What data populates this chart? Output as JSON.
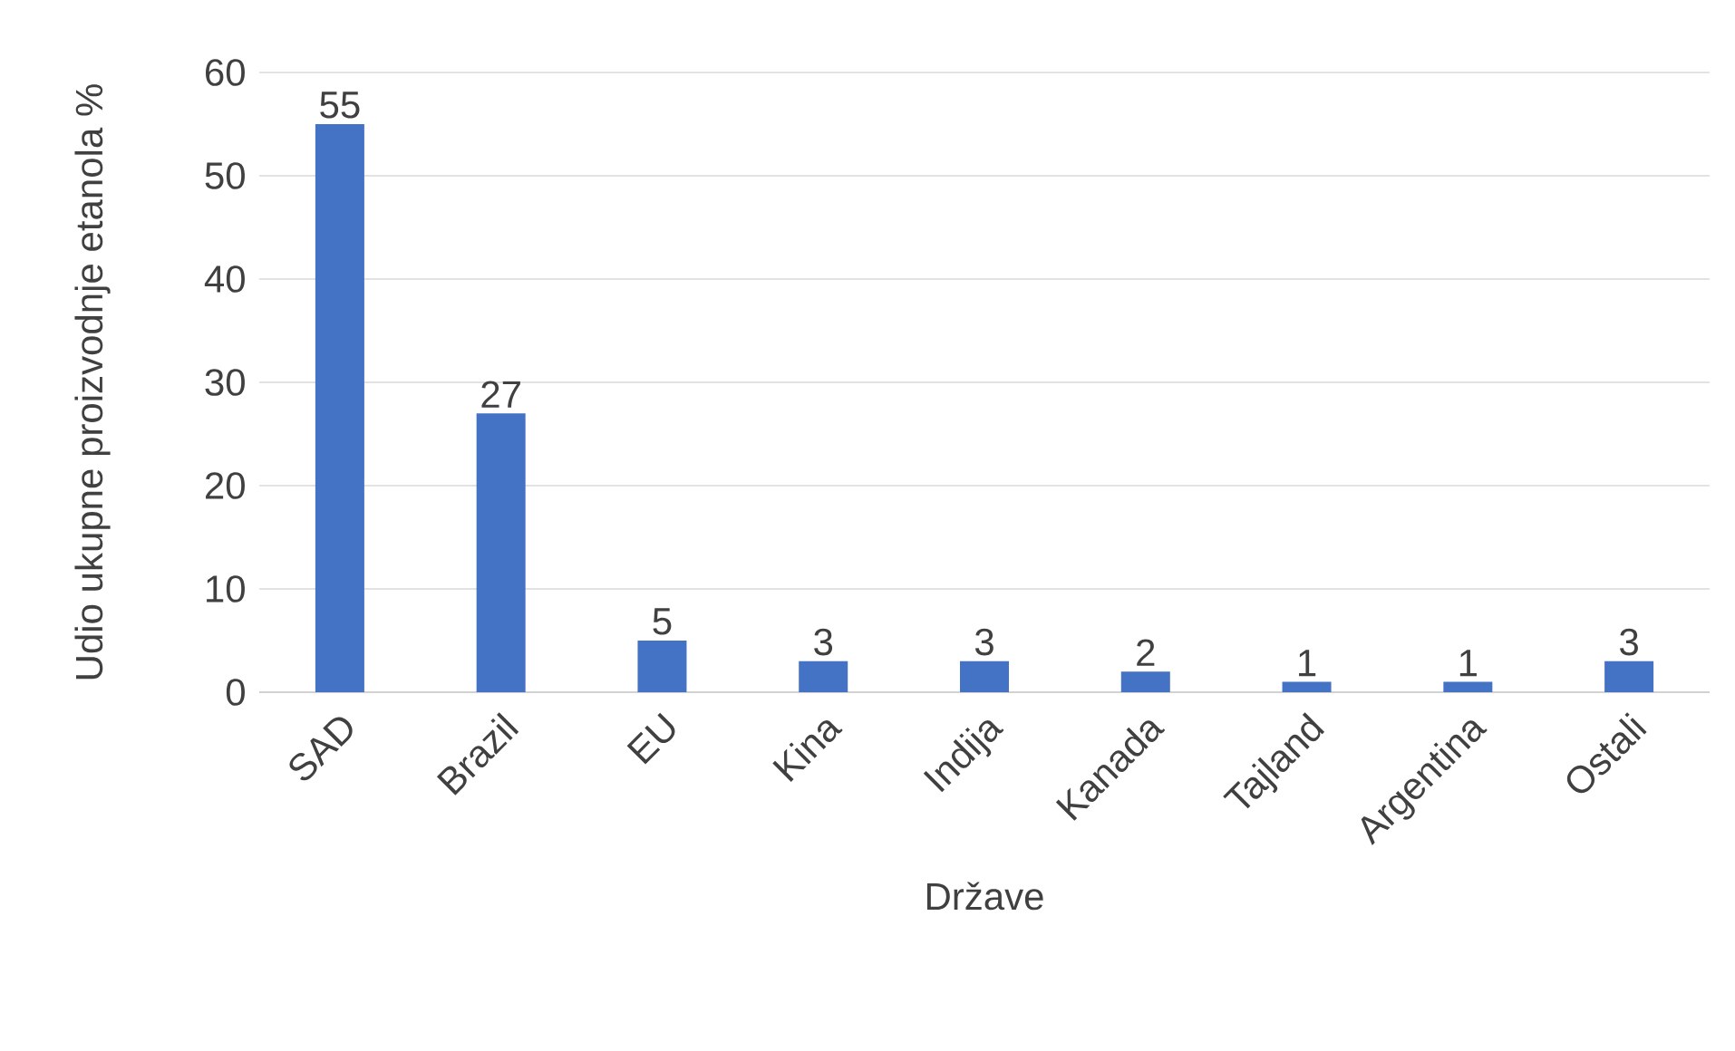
{
  "chart_data": {
    "type": "bar",
    "xlabel": "Države",
    "ylabel": "Udio ukupne proizvodnje etanola %",
    "categories": [
      "SAD",
      "Brazil",
      "EU",
      "Kina",
      "Indija",
      "Kanada",
      "Tajland",
      "Argentina",
      "Ostali"
    ],
    "values": [
      55,
      27,
      5,
      3,
      3,
      2,
      1,
      1,
      3
    ],
    "color": "#4472c4",
    "ylim": [
      0,
      60
    ],
    "yticks": [
      0,
      10,
      20,
      30,
      40,
      50,
      60
    ],
    "grid": "y",
    "data_labels": true
  }
}
